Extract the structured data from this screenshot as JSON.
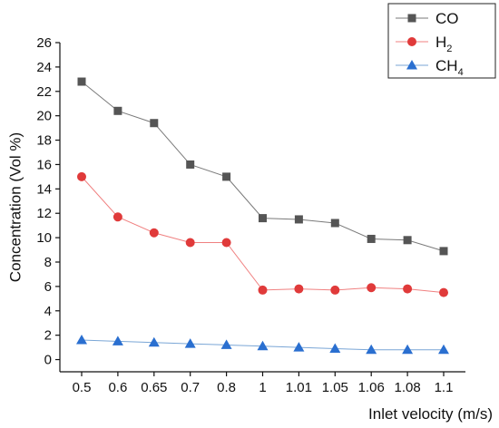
{
  "chart_data": {
    "type": "line",
    "categories": [
      "0.5",
      "0.6",
      "0.65",
      "0.7",
      "0.8",
      "1",
      "1.01",
      "1.05",
      "1.06",
      "1.08",
      "1.1"
    ],
    "series": [
      {
        "name": "CO",
        "name_sub": "",
        "color": "#7a7a7a",
        "marker_color": "#555555",
        "marker": "square",
        "values": [
          22.8,
          20.4,
          19.4,
          16.0,
          15.0,
          11.6,
          11.5,
          11.2,
          9.9,
          9.8,
          8.9
        ]
      },
      {
        "name": "H",
        "name_sub": "2",
        "color": "#f08080",
        "marker_color": "#e03a3a",
        "marker": "circle",
        "values": [
          15.0,
          11.7,
          10.4,
          9.6,
          9.6,
          5.7,
          5.8,
          5.7,
          5.9,
          5.8,
          5.5
        ]
      },
      {
        "name": "CH",
        "name_sub": "4",
        "color": "#7aa6d6",
        "marker_color": "#2a6fd0",
        "marker": "triangle",
        "values": [
          1.6,
          1.5,
          1.4,
          1.3,
          1.2,
          1.1,
          1.0,
          0.9,
          0.8,
          0.8,
          0.8
        ]
      }
    ],
    "xlabel": "Inlet velocity (m/s)",
    "ylabel": "Concentration (Vol %)",
    "yticks": [
      "0",
      "2",
      "4",
      "6",
      "8",
      "10",
      "12",
      "14",
      "16",
      "18",
      "20",
      "22",
      "24",
      "26"
    ],
    "ylim": [
      -1,
      26
    ],
    "grid": false,
    "legend_position": "top-right"
  }
}
